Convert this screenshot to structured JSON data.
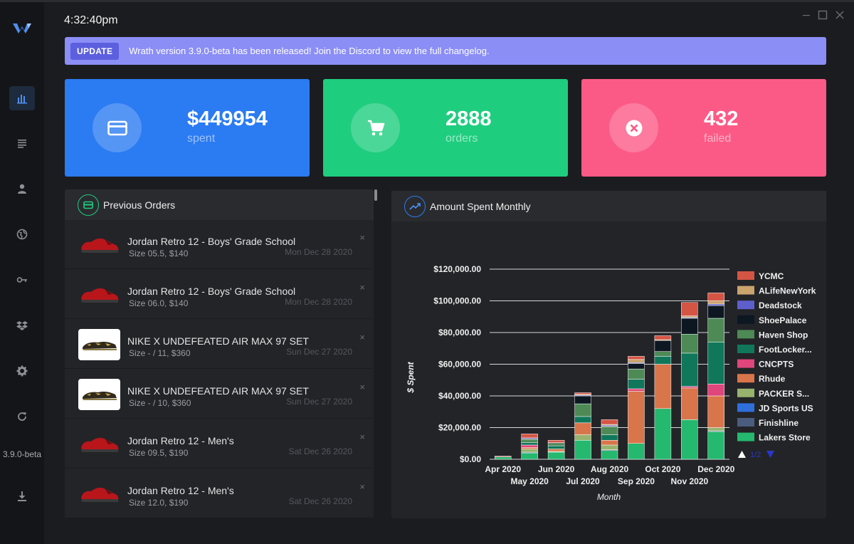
{
  "clock": "4:32:40pm",
  "sidebar": {
    "version": "3.9.0-beta",
    "items": [
      {
        "icon": "bar-chart-icon"
      },
      {
        "icon": "list-icon"
      },
      {
        "icon": "user-icon"
      },
      {
        "icon": "globe-icon"
      },
      {
        "icon": "key-icon"
      },
      {
        "icon": "dropbox-icon"
      },
      {
        "icon": "gear-icon"
      },
      {
        "icon": "refresh-icon"
      },
      {
        "icon": "download-icon"
      }
    ]
  },
  "banner": {
    "badge": "UPDATE",
    "text": "Wrath version 3.9.0-beta has been released! Join the Discord to view the full changelog."
  },
  "stats": [
    {
      "value": "$449954",
      "label": "spent",
      "color": "#2b7bf2",
      "icon": "credit-card-icon"
    },
    {
      "value": "2888",
      "label": "orders",
      "color": "#1fcd7f",
      "icon": "cart-icon"
    },
    {
      "value": "432",
      "label": "failed",
      "color": "#fc5a86",
      "icon": "close-circle-icon"
    }
  ],
  "orders_panel": {
    "title": "Previous Orders",
    "orders": [
      {
        "name": "Jordan Retro 12 - Boys' Grade School",
        "size": "Size 05.5, $140",
        "date": "Mon Dec 28 2020",
        "thumb": "red"
      },
      {
        "name": "Jordan Retro 12 - Boys' Grade School",
        "size": "Size 06.0, $140",
        "date": "Mon Dec 28 2020",
        "thumb": "red"
      },
      {
        "name": "NIKE X UNDEFEATED AIR MAX 97 SET",
        "size": "Size - / 11, $360",
        "date": "Sun Dec 27 2020",
        "thumb": "camo"
      },
      {
        "name": "NIKE X UNDEFEATED AIR MAX 97 SET",
        "size": "Size - / 10, $360",
        "date": "Sun Dec 27 2020",
        "thumb": "camo"
      },
      {
        "name": "Jordan Retro 12 - Men's",
        "size": "Size 09.5, $190",
        "date": "Sat Dec 26 2020",
        "thumb": "red"
      },
      {
        "name": "Jordan Retro 12 - Men's",
        "size": "Size 12.0, $190",
        "date": "Sat Dec 26 2020",
        "thumb": "red"
      }
    ],
    "close_glyph": "×"
  },
  "chart_panel": {
    "title": "Amount Spent Monthly",
    "pager": "1/2"
  },
  "chart_data": {
    "type": "bar",
    "stacked": true,
    "title": "Amount Spent Monthly",
    "xlabel": "Month",
    "ylabel": "$ Spent",
    "ylim": [
      0,
      120000
    ],
    "yticks": [
      "$0.00",
      "$20,000.00",
      "$40,000.00",
      "$60,000.00",
      "$80,000.00",
      "$100,000.00",
      "$120,000.00"
    ],
    "categories": [
      "Apr 2020",
      "May 2020",
      "Jun 2020",
      "Jul 2020",
      "Aug 2020",
      "Sep 2020",
      "Oct 2020",
      "Nov 2020",
      "Dec 2020"
    ],
    "legend_position": "right",
    "series": [
      {
        "name": "Lakers Store",
        "color": "#25b86f",
        "values": [
          1500,
          4000,
          4500,
          12000,
          5500,
          10000,
          32000,
          25000,
          17500
        ]
      },
      {
        "name": "Finishline",
        "color": "#4b5d7e",
        "values": [
          0,
          500,
          0,
          0,
          500,
          0,
          0,
          0,
          500
        ]
      },
      {
        "name": "JD Sports US",
        "color": "#2f6fdc",
        "values": [
          0,
          0,
          0,
          0,
          0,
          0,
          0,
          0,
          0
        ]
      },
      {
        "name": "PACKER S...",
        "color": "#97b36e",
        "values": [
          0,
          2000,
          500,
          3500,
          3000,
          0,
          0,
          0,
          2000
        ]
      },
      {
        "name": "Rhude",
        "color": "#d9754a",
        "values": [
          0,
          1000,
          1500,
          7500,
          3000,
          33000,
          28000,
          20000,
          20000
        ]
      },
      {
        "name": "CNCPTS",
        "color": "#e0457c",
        "values": [
          0,
          1500,
          0,
          0,
          0,
          1500,
          0,
          1000,
          7500
        ]
      },
      {
        "name": "FootLocker...",
        "color": "#10775b",
        "values": [
          0,
          1500,
          2000,
          4000,
          3500,
          6000,
          5000,
          21000,
          26500
        ]
      },
      {
        "name": "Haven Shop",
        "color": "#4d8a56",
        "values": [
          0,
          2000,
          1500,
          8000,
          5000,
          6500,
          3000,
          12000,
          15000
        ]
      },
      {
        "name": "ShoePalace",
        "color": "#0d1722",
        "values": [
          0,
          500,
          500,
          5000,
          500,
          3500,
          7000,
          10000,
          8000
        ]
      },
      {
        "name": "Deadstock",
        "color": "#5e5fcb",
        "values": [
          0,
          500,
          0,
          500,
          500,
          500,
          0,
          500,
          1000
        ]
      },
      {
        "name": "ALifeNewYork",
        "color": "#caa36d",
        "values": [
          0,
          0,
          0,
          500,
          500,
          2000,
          500,
          1000,
          2000
        ]
      },
      {
        "name": "YCMC",
        "color": "#d55545",
        "values": [
          500,
          2500,
          1500,
          1000,
          3000,
          2000,
          2500,
          8500,
          5000
        ]
      }
    ]
  }
}
